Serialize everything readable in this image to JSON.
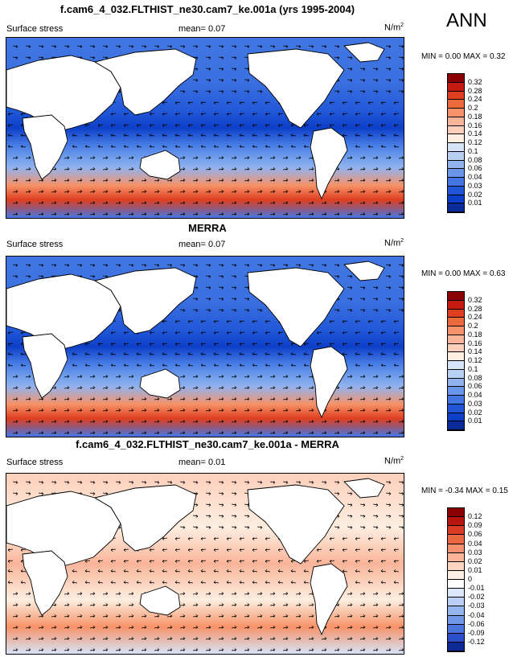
{
  "season": "ANN",
  "units_sup": "2",
  "panels": [
    {
      "title": "f.cam6_4_032.FLTHIST_ne30.cam7_ke.001a (yrs 1995-2004)",
      "variable": "Surface stress",
      "mean_text": "mean=  0.07",
      "units": "N/m",
      "minmax": "MIN =  0.00 MAX =  0.32",
      "colorbar_labels": [
        "0.32",
        "0.28",
        "0.24",
        "0.2",
        "0.18",
        "0.16",
        "0.14",
        "0.12",
        "0.1",
        "0.08",
        "0.06",
        "0.04",
        "0.03",
        "0.02",
        "0.01"
      ],
      "colorbar_colors": [
        "#8b0000",
        "#c41a0f",
        "#de3f1e",
        "#ed6a3d",
        "#f69268",
        "#f9b499",
        "#fbd0bb",
        "#fdeee0",
        "#d6e4f8",
        "#b8d0f4",
        "#90b4ef",
        "#6a97ea",
        "#4277e3",
        "#1f56d8",
        "#0c3fc7",
        "#0a2b9a"
      ],
      "fill_style": "abs"
    },
    {
      "title": "MERRA",
      "variable": "Surface stress",
      "mean_text": "mean=  0.07",
      "units": "N/m",
      "minmax": "MIN =  0.00 MAX =  0.63",
      "colorbar_labels": [
        "0.32",
        "0.28",
        "0.24",
        "0.2",
        "0.18",
        "0.16",
        "0.14",
        "0.12",
        "0.1",
        "0.08",
        "0.06",
        "0.04",
        "0.03",
        "0.02",
        "0.01"
      ],
      "colorbar_colors": [
        "#8b0000",
        "#c41a0f",
        "#de3f1e",
        "#ed6a3d",
        "#f69268",
        "#f9b499",
        "#fbd0bb",
        "#fdeee0",
        "#d6e4f8",
        "#b8d0f4",
        "#90b4ef",
        "#6a97ea",
        "#4277e3",
        "#1f56d8",
        "#0c3fc7",
        "#0a2b9a"
      ],
      "fill_style": "abs"
    },
    {
      "title": "f.cam6_4_032.FLTHIST_ne30.cam7_ke.001a - MERRA",
      "variable": "Surface stress",
      "mean_text": "mean=  0.01",
      "units": "N/m",
      "minmax": "MIN = -0.34 MAX =  0.15",
      "colorbar_labels": [
        "0.12",
        "0.09",
        "0.06",
        "0.04",
        "0.03",
        "0.02",
        "0.01",
        "0",
        "-0.01",
        "-0.02",
        "-0.03",
        "-0.04",
        "-0.06",
        "-0.09",
        "-0.12"
      ],
      "colorbar_colors": [
        "#8b0000",
        "#b8150b",
        "#d93a22",
        "#ec6840",
        "#f5916c",
        "#f9b596",
        "#fcd4c0",
        "#fdeee4",
        "#ffffff",
        "#dbe7fa",
        "#b9d0f4",
        "#93b6ee",
        "#6f98e8",
        "#4c76de",
        "#2a4fc8",
        "#0c2a96"
      ],
      "fill_style": "diff"
    }
  ]
}
